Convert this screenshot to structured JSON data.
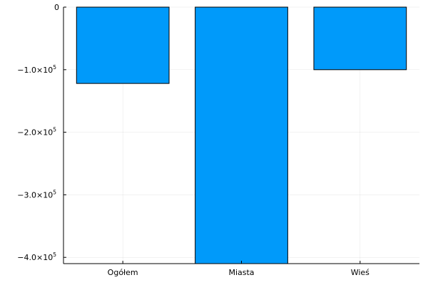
{
  "chart_data": {
    "type": "bar",
    "categories": [
      "Ogółem",
      "Miasta",
      "Wieś"
    ],
    "values": [
      -122000,
      -412000,
      -100000
    ],
    "title": "",
    "xlabel": "",
    "ylabel": "",
    "ylim": [
      -410000,
      0
    ],
    "yticks": [
      0,
      -100000,
      -200000,
      -300000,
      -400000
    ],
    "ytick_labels": [
      {
        "mantissa": "0",
        "exponent": ""
      },
      {
        "mantissa": "−1.0×10",
        "exponent": "5"
      },
      {
        "mantissa": "−2.0×10",
        "exponent": "5"
      },
      {
        "mantissa": "−3.0×10",
        "exponent": "5"
      },
      {
        "mantissa": "−4.0×10",
        "exponent": "5"
      }
    ],
    "bar_color": "#009AFA",
    "grid": true,
    "legend": "none"
  }
}
